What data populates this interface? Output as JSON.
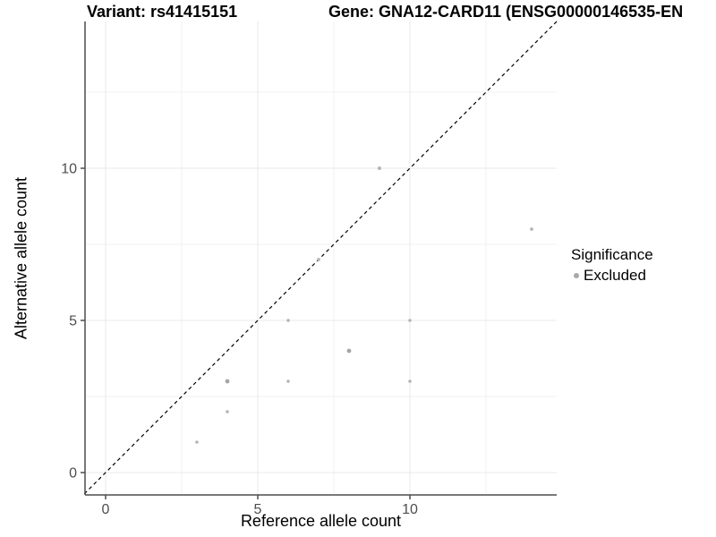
{
  "chart_data": {
    "type": "scatter",
    "title_left": "Variant: rs41415151",
    "title_right": "Gene: GNA12-CARD11 (ENSG00000146535-EN",
    "xlabel": "Reference allele count",
    "ylabel": "Alternative allele count",
    "xlim": [
      -0.7,
      14.85
    ],
    "ylim": [
      -0.7,
      14.85
    ],
    "x_major_ticks": [
      0,
      5,
      10
    ],
    "y_major_ticks": [
      0,
      5,
      10
    ],
    "x_minor_ticks": [
      2.5,
      7.5,
      12.5
    ],
    "y_minor_ticks": [
      2.5,
      7.5,
      12.5
    ],
    "grid": true,
    "reference_line": {
      "type": "identity",
      "style": "dashed",
      "color": "#000000"
    },
    "series": [
      {
        "name": "Excluded",
        "color": "#b5b5b5",
        "points": [
          {
            "x": 3,
            "y": 1,
            "r": 1.8
          },
          {
            "x": 4,
            "y": 2,
            "r": 1.8
          },
          {
            "x": 4,
            "y": 3,
            "r": 2.4
          },
          {
            "x": 6,
            "y": 3,
            "r": 1.8
          },
          {
            "x": 10,
            "y": 3,
            "r": 1.8
          },
          {
            "x": 8,
            "y": 4,
            "r": 2.4
          },
          {
            "x": 6,
            "y": 5,
            "r": 1.8
          },
          {
            "x": 10,
            "y": 5,
            "r": 1.8
          },
          {
            "x": 7,
            "y": 7,
            "r": 1.9
          },
          {
            "x": 14,
            "y": 8,
            "r": 1.9
          },
          {
            "x": 9,
            "y": 10,
            "r": 2.0
          }
        ]
      }
    ],
    "legend": {
      "position": "right",
      "title": "Significance",
      "items": [
        {
          "label": "Excluded",
          "color": "#a8a8a8"
        }
      ]
    },
    "colors": {
      "grid_major": "#e8e8e8",
      "grid_minor": "#f2f2f2",
      "axis": "#4d4d4d",
      "tick_label": "#4d4d4d",
      "point": "#b5b5b5",
      "point_dark": "#a6a6a6"
    }
  }
}
